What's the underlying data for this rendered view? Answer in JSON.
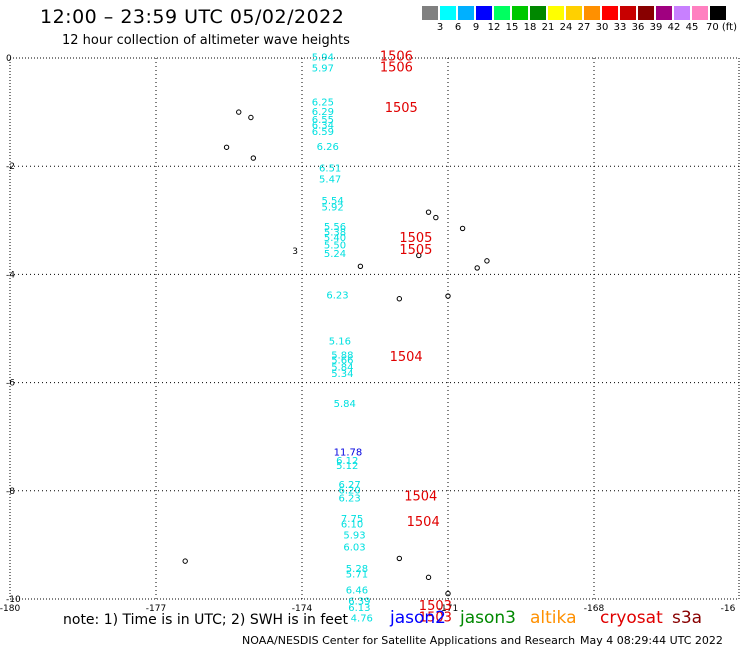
{
  "header": {
    "title": "12:00 – 23:59 UTC 05/02/2022",
    "subtitle": "12 hour collection of altimeter wave heights"
  },
  "colorbar": {
    "colors": [
      "#808080",
      "#00ffff",
      "#00b0ff",
      "#0000ff",
      "#00ff60",
      "#00c800",
      "#008800",
      "#ffff00",
      "#ffd000",
      "#ff9000",
      "#ff0000",
      "#c80000",
      "#880000",
      "#a00080",
      "#c880ff",
      "#ff80c0",
      "#000000"
    ],
    "labels": [
      "3",
      "6",
      "9",
      "12",
      "15",
      "18",
      "21",
      "24",
      "27",
      "30",
      "33",
      "36",
      "39",
      "42",
      "45",
      "70 (ft)"
    ]
  },
  "map": {
    "x_ticks": [
      "-180",
      "-177",
      "-174",
      "-171",
      "-168",
      "-16"
    ],
    "y_ticks": [
      "0",
      "-2",
      "-4",
      "-6",
      "-8",
      "-10"
    ],
    "x_range": [
      -180,
      -165
    ],
    "y_range": [
      -10,
      0
    ],
    "grid": "dotted",
    "wave_heights": [
      {
        "lon": -173.8,
        "lat": -0.05,
        "text": "5.94",
        "color": "#00e0e0"
      },
      {
        "lon": -173.8,
        "lat": -0.25,
        "text": "5.97",
        "color": "#00e0e0"
      },
      {
        "lon": -173.8,
        "lat": -0.88,
        "text": "6.25",
        "color": "#00e0e0"
      },
      {
        "lon": -173.8,
        "lat": -1.05,
        "text": "6.29",
        "color": "#00e0e0"
      },
      {
        "lon": -173.8,
        "lat": -1.2,
        "text": "6.55",
        "color": "#00e0e0"
      },
      {
        "lon": -173.8,
        "lat": -1.3,
        "text": "6.34",
        "color": "#00e0e0"
      },
      {
        "lon": -173.8,
        "lat": -1.42,
        "text": "6.59",
        "color": "#00e0e0"
      },
      {
        "lon": -173.7,
        "lat": -1.7,
        "text": "6.26",
        "color": "#00e0e0"
      },
      {
        "lon": -173.65,
        "lat": -2.1,
        "text": "6.51",
        "color": "#00e0e0"
      },
      {
        "lon": -173.65,
        "lat": -2.3,
        "text": "5.47",
        "color": "#00e0e0"
      },
      {
        "lon": -173.6,
        "lat": -2.7,
        "text": "5.54",
        "color": "#00e0e0"
      },
      {
        "lon": -173.6,
        "lat": -2.82,
        "text": "5.92",
        "color": "#00e0e0"
      },
      {
        "lon": -173.55,
        "lat": -3.18,
        "text": "5.56",
        "color": "#00e0e0"
      },
      {
        "lon": -173.55,
        "lat": -3.28,
        "text": "5.38",
        "color": "#00e0e0"
      },
      {
        "lon": -173.55,
        "lat": -3.38,
        "text": "5.40",
        "color": "#00e0e0"
      },
      {
        "lon": -173.55,
        "lat": -3.52,
        "text": "5.50",
        "color": "#00e0e0"
      },
      {
        "lon": -173.55,
        "lat": -3.68,
        "text": "5.24",
        "color": "#00e0e0"
      },
      {
        "lon": -173.5,
        "lat": -4.45,
        "text": "6.23",
        "color": "#00e0e0"
      },
      {
        "lon": -173.45,
        "lat": -5.3,
        "text": "5.16",
        "color": "#00e0e0"
      },
      {
        "lon": -173.4,
        "lat": -5.55,
        "text": "5.88",
        "color": "#00e0e0"
      },
      {
        "lon": -173.4,
        "lat": -5.65,
        "text": "5.66",
        "color": "#00e0e0"
      },
      {
        "lon": -173.4,
        "lat": -5.78,
        "text": "5.84",
        "color": "#00e0e0"
      },
      {
        "lon": -173.4,
        "lat": -5.9,
        "text": "5.34",
        "color": "#00e0e0"
      },
      {
        "lon": -173.35,
        "lat": -6.45,
        "text": "5.84",
        "color": "#00e0e0"
      },
      {
        "lon": -173.35,
        "lat": -7.35,
        "text": "11.78",
        "color": "#0000e0"
      },
      {
        "lon": -173.3,
        "lat": -7.5,
        "text": "6.12",
        "color": "#00e0e0"
      },
      {
        "lon": -173.3,
        "lat": -7.6,
        "text": "5.12",
        "color": "#00e0e0"
      },
      {
        "lon": -173.25,
        "lat": -7.95,
        "text": "6.27",
        "color": "#00e0e0"
      },
      {
        "lon": -173.25,
        "lat": -8.05,
        "text": "6.20",
        "color": "#00e0e0"
      },
      {
        "lon": -173.25,
        "lat": -8.2,
        "text": "6.23",
        "color": "#00e0e0"
      },
      {
        "lon": -173.2,
        "lat": -8.58,
        "text": "7.75",
        "color": "#00e0e0"
      },
      {
        "lon": -173.2,
        "lat": -8.68,
        "text": "6.10",
        "color": "#00e0e0"
      },
      {
        "lon": -173.15,
        "lat": -8.88,
        "text": "5.93",
        "color": "#00e0e0"
      },
      {
        "lon": -173.15,
        "lat": -9.1,
        "text": "6.03",
        "color": "#00e0e0"
      },
      {
        "lon": -173.1,
        "lat": -9.5,
        "text": "5.28",
        "color": "#00e0e0"
      },
      {
        "lon": -173.1,
        "lat": -9.6,
        "text": "5.71",
        "color": "#00e0e0"
      },
      {
        "lon": -173.1,
        "lat": -9.9,
        "text": "6.46",
        "color": "#00e0e0"
      },
      {
        "lon": -173.05,
        "lat": -10.1,
        "text": "6.39",
        "color": "#00e0e0"
      },
      {
        "lon": -173.05,
        "lat": -10.22,
        "text": "6.13",
        "color": "#00e0e0"
      },
      {
        "lon": -173.0,
        "lat": -10.42,
        "text": "4.76",
        "color": "#00e0e0"
      }
    ],
    "pass_labels": [
      {
        "lon": -172.4,
        "lat": -0.05,
        "text": "1506",
        "color": "#e00000"
      },
      {
        "lon": -172.4,
        "lat": -0.25,
        "text": "1506",
        "color": "#e00000"
      },
      {
        "lon": -172.3,
        "lat": -1.0,
        "text": "1505",
        "color": "#e00000"
      },
      {
        "lon": -172.0,
        "lat": -3.4,
        "text": "1505",
        "color": "#e00000"
      },
      {
        "lon": -172.0,
        "lat": -3.62,
        "text": "1505",
        "color": "#e00000"
      },
      {
        "lon": -172.2,
        "lat": -5.6,
        "text": "1504",
        "color": "#e00000"
      },
      {
        "lon": -171.9,
        "lat": -8.18,
        "text": "1504",
        "color": "#e00000"
      },
      {
        "lon": -171.85,
        "lat": -8.65,
        "text": "1504",
        "color": "#e00000"
      },
      {
        "lon": -171.6,
        "lat": -10.2,
        "text": "1503",
        "color": "#e00000"
      },
      {
        "lon": -171.6,
        "lat": -10.42,
        "text": "1503",
        "color": "#e00000"
      }
    ],
    "islands": [
      {
        "lon": -175.3,
        "lat": -1.0
      },
      {
        "lon": -175.05,
        "lat": -1.1
      },
      {
        "lon": -175.55,
        "lat": -1.65
      },
      {
        "lon": -175.0,
        "lat": -1.85
      },
      {
        "lon": -171.4,
        "lat": -2.85
      },
      {
        "lon": -171.25,
        "lat": -2.95
      },
      {
        "lon": -170.7,
        "lat": -3.15
      },
      {
        "lon": -171.6,
        "lat": -3.65
      },
      {
        "lon": -170.2,
        "lat": -3.75
      },
      {
        "lon": -170.4,
        "lat": -3.88
      },
      {
        "lon": -172.8,
        "lat": -3.85
      },
      {
        "lon": -172.0,
        "lat": -4.45
      },
      {
        "lon": -171.0,
        "lat": -4.4
      },
      {
        "lon": -172.0,
        "lat": -9.25
      },
      {
        "lon": -171.4,
        "lat": -9.6
      },
      {
        "lon": -171.0,
        "lat": -9.9
      },
      {
        "lon": -176.4,
        "lat": -9.3
      }
    ],
    "stray_label": {
      "lon": -174.2,
      "lat": -3.62,
      "text": "3"
    }
  },
  "footer": {
    "note": "note: 1) Time is in UTC; 2) SWH is in feet",
    "satellites": [
      {
        "name": "jason2",
        "color": "#0000ff"
      },
      {
        "name": "jason3",
        "color": "#008800"
      },
      {
        "name": "altika",
        "color": "#ff9000"
      },
      {
        "name": "cryosat",
        "color": "#e00000"
      },
      {
        "name": "s3a",
        "color": "#880000"
      }
    ],
    "credit": "NOAA/NESDIS Center for Satellite Applications and Research",
    "timestamp": "May  4 08:29:44 UTC 2022"
  }
}
